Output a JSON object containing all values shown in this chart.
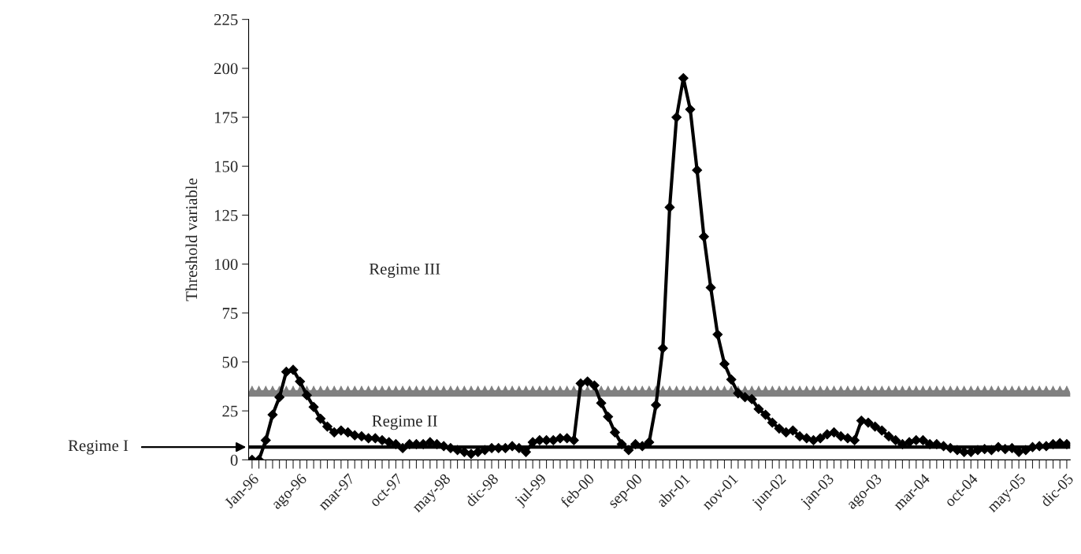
{
  "chart_data": {
    "type": "line",
    "ylabel": "Threshold variable",
    "categories": [
      "Jan-96",
      null,
      null,
      null,
      null,
      null,
      null,
      "ago-96",
      null,
      null,
      null,
      null,
      null,
      null,
      "mar-97",
      null,
      null,
      null,
      null,
      null,
      null,
      "oct-97",
      null,
      null,
      null,
      null,
      null,
      null,
      "may-98",
      null,
      null,
      null,
      null,
      null,
      null,
      "dic-98",
      null,
      null,
      null,
      null,
      null,
      null,
      "jul-99",
      null,
      null,
      null,
      null,
      null,
      null,
      "feb-00",
      null,
      null,
      null,
      null,
      null,
      null,
      "sep-00",
      null,
      null,
      null,
      null,
      null,
      null,
      "abr-01",
      null,
      null,
      null,
      null,
      null,
      null,
      "nov-01",
      null,
      null,
      null,
      null,
      null,
      null,
      "jun-02",
      null,
      null,
      null,
      null,
      null,
      null,
      "jan-03",
      null,
      null,
      null,
      null,
      null,
      null,
      "ago-03",
      null,
      null,
      null,
      null,
      null,
      null,
      "mar-04",
      null,
      null,
      null,
      null,
      null,
      null,
      "oct-04",
      null,
      null,
      null,
      null,
      null,
      null,
      "may-05",
      null,
      null,
      null,
      null,
      null,
      null,
      "dic-05"
    ],
    "series": [
      {
        "color": "#000000",
        "marker": "diamond",
        "line_style": "solid",
        "values": [
          0,
          0,
          10,
          23,
          32,
          45,
          46,
          40,
          33,
          27,
          21,
          17,
          14,
          15,
          14,
          12.5,
          12,
          11,
          11,
          10,
          9,
          8,
          6,
          8,
          8,
          8,
          9,
          8,
          7,
          6,
          5,
          4,
          3,
          4,
          5,
          6,
          6,
          6,
          7,
          6,
          4,
          9,
          10,
          10,
          10,
          11,
          11,
          10,
          39,
          40,
          38,
          29,
          22,
          14,
          8,
          5,
          8,
          7,
          9,
          28,
          57,
          129,
          175,
          195,
          179,
          148,
          114,
          88,
          64,
          49,
          41,
          34,
          32,
          31,
          26,
          23,
          19,
          16,
          14,
          15,
          12,
          11,
          10,
          11,
          13,
          14,
          12,
          11,
          10,
          20,
          19,
          17,
          15,
          12,
          10,
          8,
          9,
          10,
          10,
          8,
          8,
          7,
          6,
          5,
          4,
          4,
          5,
          5.5,
          5,
          6.5,
          5.5,
          6,
          4,
          5,
          6.5,
          7,
          7,
          8,
          8.5,
          8
        ]
      },
      {
        "color": "#808080",
        "marker": "triangle",
        "line_style": "solid",
        "values": [
          35,
          35,
          35,
          35,
          35,
          35,
          35,
          35,
          35,
          35,
          35,
          35,
          35,
          35,
          35,
          35,
          35,
          35,
          35,
          35,
          35,
          35,
          35,
          35,
          35,
          35,
          35,
          35,
          35,
          35,
          35,
          35,
          35,
          35,
          35,
          35,
          35,
          35,
          35,
          35,
          35,
          35,
          35,
          35,
          35,
          35,
          35,
          35,
          35,
          35,
          35,
          35,
          35,
          35,
          35,
          35,
          35,
          35,
          35,
          35,
          35,
          35,
          35,
          35,
          35,
          35,
          35,
          35,
          35,
          35,
          35,
          35,
          35,
          35,
          35,
          35,
          35,
          35,
          35,
          35,
          35,
          35,
          35,
          35,
          35,
          35,
          35,
          35,
          35,
          35,
          35,
          35,
          35,
          35,
          35,
          35,
          35,
          35,
          35,
          35,
          35,
          35,
          35,
          35,
          35,
          35,
          35,
          35,
          35,
          35,
          35,
          35,
          35,
          35,
          35,
          35,
          35,
          35,
          35,
          35
        ]
      }
    ],
    "ref_lines": [
      {
        "axis": "y",
        "value": 6.5,
        "label": "Regime I",
        "color": "#000000",
        "line_style": "solid"
      }
    ],
    "annotations": [
      "Regime III",
      "Regime II"
    ],
    "ylim": [
      0,
      225
    ],
    "yticks": [
      0,
      25,
      50,
      75,
      100,
      125,
      150,
      175,
      200,
      225
    ],
    "grid": false,
    "legend": false
  }
}
